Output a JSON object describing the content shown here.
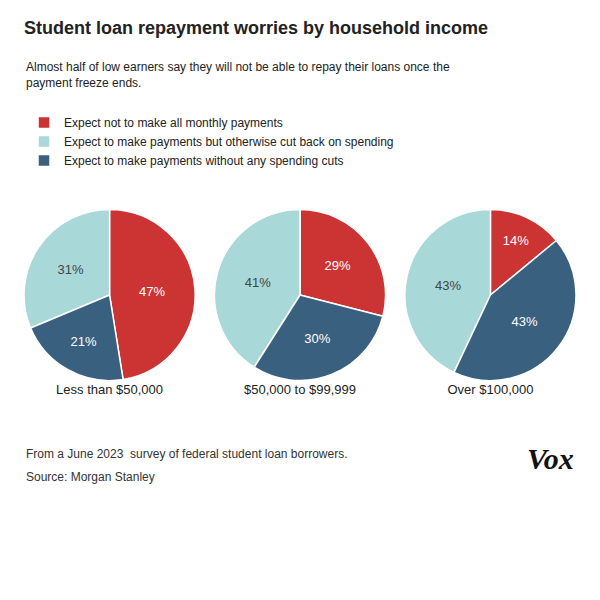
{
  "chart_data": {
    "type": "pie",
    "title": "Student loan repayment worries by household income",
    "subtitle": "Almost half of low earners say they will not be able to repay their loans once the\npayment freeze ends.",
    "categories": [
      "Expect not to make all monthly payments",
      "Expect to make payments but otherwise cut back on spending",
      "Expect to make payments without any spending cuts"
    ],
    "colors": [
      "#cc3333",
      "#a8d8d8",
      "#3a6080"
    ],
    "series": [
      {
        "name": "Less than $50,000",
        "values": [
          47,
          31,
          21
        ],
        "value_labels": [
          "47%",
          "31%",
          "21%"
        ]
      },
      {
        "name": "$50,000 to $99,999",
        "values": [
          29,
          41,
          30
        ],
        "value_labels": [
          "29%",
          "41%",
          "30%"
        ]
      },
      {
        "name": "Over $100,000",
        "values": [
          14,
          43,
          43
        ],
        "value_labels": [
          "14%",
          "43%",
          "43%"
        ]
      }
    ],
    "data_labels": true,
    "legend": "upper left",
    "annotations": [
      "From a June 2023  survey of federal student loan borrowers.",
      "Source: Morgan Stanley",
      "Vox"
    ]
  }
}
